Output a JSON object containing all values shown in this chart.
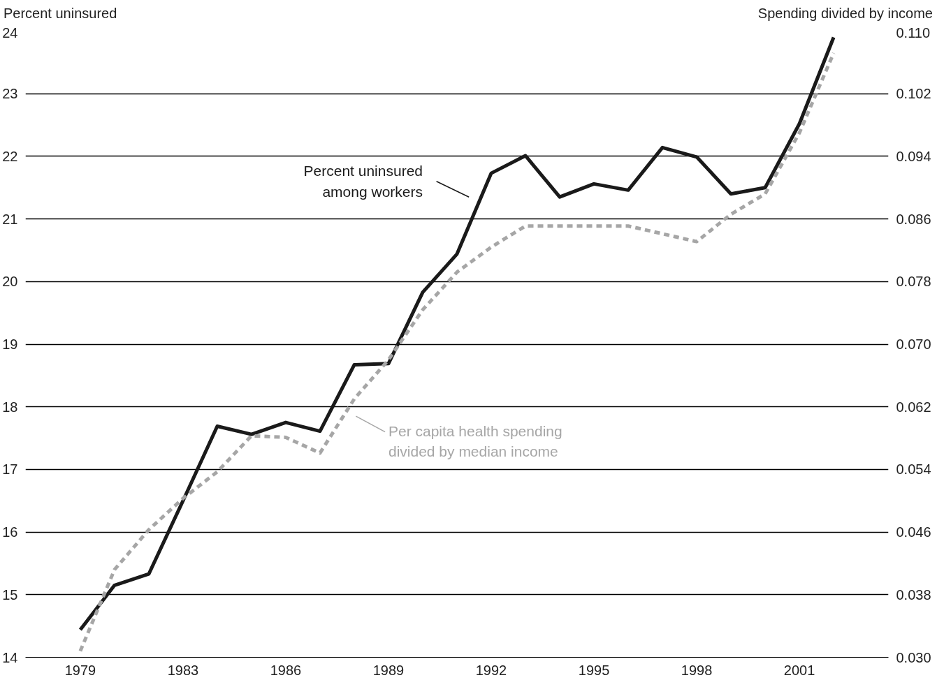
{
  "chart_data": {
    "type": "line",
    "ylabel": "Percent uninsured",
    "y2label": "Spending divided by income",
    "categories": [
      "1979",
      null,
      null,
      "1983",
      null,
      null,
      "1986",
      null,
      null,
      "1989",
      null,
      null,
      "1992",
      null,
      null,
      "1995",
      null,
      null,
      "1998",
      null,
      null,
      "2001",
      null
    ],
    "ylim": [
      14,
      24
    ],
    "yticks": [
      14,
      15,
      16,
      17,
      18,
      19,
      20,
      21,
      22,
      23,
      24
    ],
    "y2lim": [
      0.03,
      0.11
    ],
    "y2ticks": [
      {
        "value": 0.03,
        "label": "0.030"
      },
      {
        "value": 0.038,
        "label": "0.038"
      },
      {
        "value": 0.046,
        "label": "0.046"
      },
      {
        "value": 0.054,
        "label": "0.054"
      },
      {
        "value": 0.062,
        "label": "0.062"
      },
      {
        "value": 0.07,
        "label": "0.070"
      },
      {
        "value": 0.078,
        "label": "0.078"
      },
      {
        "value": 0.086,
        "label": "0.086"
      },
      {
        "value": 0.094,
        "label": "0.094"
      },
      {
        "value": 0.102,
        "label": "0.102"
      },
      {
        "value": 0.11,
        "label": "0.110"
      }
    ],
    "grid": "y",
    "marker": "none",
    "series": [
      {
        "name": "Percent uninsured\namong workers",
        "color": "#1a1a1a",
        "line_style": "solid",
        "values": [
          14.44,
          15.15,
          15.33,
          16.5,
          17.69,
          17.56,
          17.75,
          17.61,
          18.67,
          18.69,
          19.83,
          20.44,
          21.73,
          22.01,
          21.35,
          21.56,
          21.46,
          22.14,
          21.99,
          21.4,
          21.5,
          22.52,
          23.9
        ]
      },
      {
        "name": "Per capita health spending\ndivided by median income",
        "color": "#a6a6a6",
        "line_style": "dotted",
        "axis": "y2",
        "values": [
          0.0308,
          0.0412,
          0.0463,
          0.0503,
          0.0537,
          0.0583,
          0.0581,
          0.0561,
          0.063,
          0.068,
          0.0744,
          0.0792,
          0.0824,
          0.0851,
          0.0851,
          0.0851,
          0.0851,
          0.0841,
          0.0831,
          0.0866,
          0.0892,
          0.097,
          0.1072
        ]
      }
    ]
  }
}
